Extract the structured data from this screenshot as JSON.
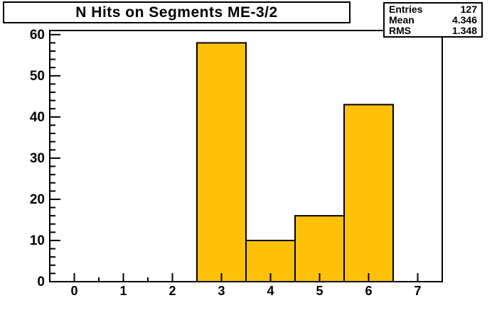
{
  "title_box": {
    "text": "N Hits on Segments ME-3/2"
  },
  "stats_box": {
    "rows": [
      {
        "label": "Entries",
        "value": "127"
      },
      {
        "label": "Mean",
        "value": "4.346"
      },
      {
        "label": "RMS",
        "value": "1.348"
      }
    ]
  },
  "chart_data": {
    "type": "bar",
    "title": "N Hits on Segments ME-3/2",
    "xlabel": "",
    "ylabel": "",
    "bin_centers": [
      0,
      1,
      2,
      3,
      4,
      5,
      6,
      7
    ],
    "values": [
      0,
      0,
      0,
      58,
      10,
      16,
      43,
      0
    ],
    "bin_width": 1,
    "xlim": [
      -0.5,
      7.5
    ],
    "ylim": [
      0,
      61
    ],
    "x_ticks": [
      0,
      1,
      2,
      3,
      4,
      5,
      6,
      7
    ],
    "y_ticks": [
      0,
      10,
      20,
      30,
      40,
      50,
      60
    ],
    "x_minor_step": 0.5,
    "y_minor_step": 2,
    "grid": false,
    "legend": false,
    "bar_fill_color": "#ffc107",
    "bar_border_color": "#000000",
    "axis_color": "#000000",
    "plot_background": "#ffffff",
    "stats": {
      "entries": 127,
      "mean": 4.346,
      "rms": 1.348
    }
  }
}
